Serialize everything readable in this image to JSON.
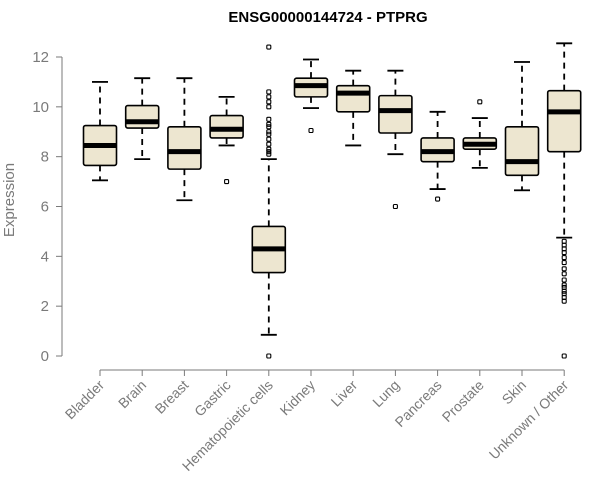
{
  "chart_data": {
    "type": "boxplot",
    "title": "ENSG00000144724 - PTPRG",
    "xlabel": "",
    "ylabel": "Expression",
    "ylim": [
      0,
      12.5
    ],
    "yticks": [
      0,
      2,
      4,
      6,
      8,
      10,
      12
    ],
    "grid": false,
    "box_fill": "#ede6d0",
    "categories": [
      "Bladder",
      "Brain",
      "Breast",
      "Gastric",
      "Hematopoietic cells",
      "Kidney",
      "Liver",
      "Lung",
      "Pancreas",
      "Prostate",
      "Skin",
      "Unknown / Other"
    ],
    "boxes": [
      {
        "name": "Bladder",
        "min": 7.05,
        "q1": 7.65,
        "median": 8.45,
        "q3": 9.25,
        "max": 11.0,
        "outliers": []
      },
      {
        "name": "Brain",
        "min": 7.9,
        "q1": 9.15,
        "median": 9.4,
        "q3": 10.05,
        "max": 11.15,
        "outliers": []
      },
      {
        "name": "Breast",
        "min": 6.25,
        "q1": 7.5,
        "median": 8.2,
        "q3": 9.2,
        "max": 11.15,
        "outliers": []
      },
      {
        "name": "Gastric",
        "min": 8.45,
        "q1": 8.75,
        "median": 9.1,
        "q3": 9.65,
        "max": 10.4,
        "outliers": [
          7.0
        ]
      },
      {
        "name": "Hematopoietic cells",
        "min": 0.85,
        "q1": 3.35,
        "median": 4.3,
        "q3": 5.2,
        "max": 7.9,
        "outliers": [
          0.0,
          8.1,
          8.2,
          8.3,
          8.5,
          8.7,
          8.9,
          9.0,
          9.2,
          9.3,
          9.5,
          10.0,
          10.2,
          10.4,
          10.6,
          12.4
        ]
      },
      {
        "name": "Kidney",
        "min": 9.95,
        "q1": 10.4,
        "median": 10.85,
        "q3": 11.15,
        "max": 11.9,
        "outliers": [
          9.05
        ]
      },
      {
        "name": "Liver",
        "min": 8.45,
        "q1": 9.8,
        "median": 10.55,
        "q3": 10.85,
        "max": 11.45,
        "outliers": []
      },
      {
        "name": "Lung",
        "min": 8.1,
        "q1": 8.95,
        "median": 9.85,
        "q3": 10.45,
        "max": 11.45,
        "outliers": [
          6.0
        ]
      },
      {
        "name": "Pancreas",
        "min": 6.7,
        "q1": 7.8,
        "median": 8.2,
        "q3": 8.75,
        "max": 9.8,
        "outliers": [
          6.3
        ]
      },
      {
        "name": "Prostate",
        "min": 7.55,
        "q1": 8.3,
        "median": 8.5,
        "q3": 8.75,
        "max": 9.55,
        "outliers": [
          10.2
        ]
      },
      {
        "name": "Skin",
        "min": 6.65,
        "q1": 7.25,
        "median": 7.8,
        "q3": 9.2,
        "max": 11.8,
        "outliers": []
      },
      {
        "name": "Unknown / Other",
        "min": 4.75,
        "q1": 8.2,
        "median": 9.8,
        "q3": 10.65,
        "max": 12.55,
        "outliers": [
          0.0,
          2.2,
          2.35,
          2.5,
          2.6,
          2.75,
          2.85,
          3.05,
          3.3,
          3.5,
          3.75,
          3.95,
          4.15,
          4.3,
          4.45,
          4.6
        ]
      }
    ]
  }
}
